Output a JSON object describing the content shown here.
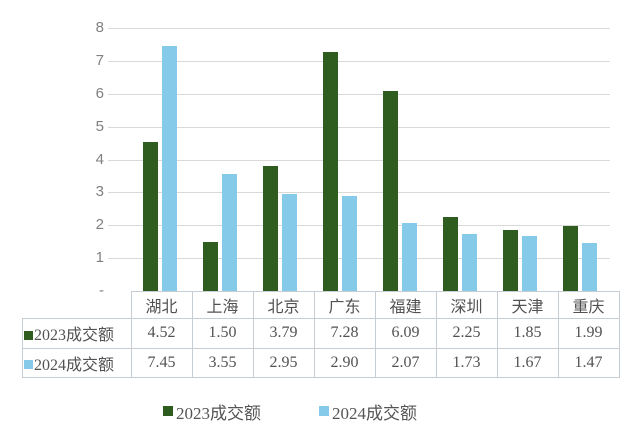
{
  "chart_data": {
    "type": "bar",
    "title": "",
    "xlabel": "",
    "ylabel": "",
    "categories": [
      "湖北",
      "上海",
      "北京",
      "广东",
      "福建",
      "深圳",
      "天津",
      "重庆"
    ],
    "series": [
      {
        "name": "2023成交额",
        "color": "#2f5d20",
        "values": [
          4.52,
          1.5,
          3.79,
          7.28,
          6.09,
          2.25,
          1.85,
          1.99
        ],
        "values_display": [
          "4.52",
          "1.50",
          "3.79",
          "7.28",
          "6.09",
          "2.25",
          "1.85",
          "1.99"
        ]
      },
      {
        "name": "2024成交额",
        "color": "#85cbe9",
        "values": [
          7.45,
          3.55,
          2.95,
          2.9,
          2.07,
          1.73,
          1.67,
          1.47
        ],
        "values_display": [
          "7.45",
          "3.55",
          "2.95",
          "2.90",
          "2.07",
          "1.73",
          "1.67",
          "1.47"
        ]
      }
    ],
    "ylim": [
      0,
      8
    ],
    "ytick_labels_top_to_bottom": [
      "8",
      "7",
      "6",
      "5",
      "4",
      "3",
      "2",
      "1",
      "-"
    ],
    "grid": true,
    "legend_position": "bottom",
    "data_table_shown": true
  },
  "legend": {
    "items": [
      {
        "label": "2023成交额",
        "color": "#2f5d20"
      },
      {
        "label": "2024成交额",
        "color": "#85cbe9"
      }
    ]
  },
  "colors": {
    "series_2023": "#2f5d20",
    "series_2024": "#85cbe9",
    "gridline": "#d9d9d9",
    "axis_label_text": "#808080",
    "table_border": "#c6ced3",
    "table_text": "#525252",
    "background": "#ffffff"
  }
}
